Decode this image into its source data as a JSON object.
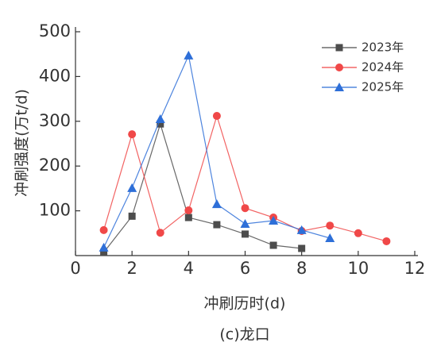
{
  "chart_data": {
    "type": "line",
    "x_label": "冲刷历时(d)",
    "y_label": "冲刷强度(万t/d)",
    "caption": "(c)龙口",
    "xlim": [
      0,
      12
    ],
    "xticks": [
      0,
      2,
      4,
      6,
      8,
      10,
      12
    ],
    "ylim": [
      0,
      500
    ],
    "yticks": [
      100,
      200,
      300,
      400,
      500
    ],
    "legend": "upper right",
    "series": [
      {
        "name": "2023年",
        "color": "#4d4d4d",
        "marker": "square",
        "x": [
          1,
          2,
          3,
          4,
          5,
          6,
          7,
          8
        ],
        "values": [
          7,
          88,
          294,
          85,
          69,
          48,
          23,
          16
        ]
      },
      {
        "name": "2024年",
        "color": "#f04848",
        "marker": "circle",
        "x": [
          1,
          2,
          3,
          4,
          5,
          6,
          7,
          8,
          9,
          10,
          11
        ],
        "values": [
          57,
          271,
          51,
          101,
          312,
          106,
          85,
          55,
          67,
          50,
          32
        ]
      },
      {
        "name": "2025年",
        "color": "#2e6fd8",
        "marker": "triangle",
        "x": [
          1,
          2,
          3,
          4,
          5,
          6,
          7,
          8,
          9
        ],
        "values": [
          18,
          151,
          305,
          447,
          115,
          71,
          78,
          57,
          39
        ]
      }
    ]
  }
}
